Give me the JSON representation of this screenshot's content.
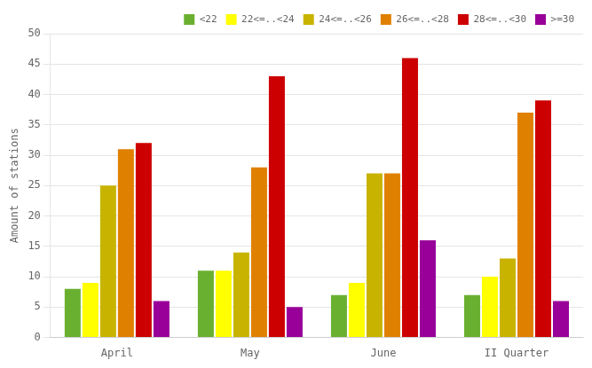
{
  "chart_data": {
    "type": "bar",
    "categories": [
      "April",
      "May",
      "June",
      "II Quarter"
    ],
    "series": [
      {
        "name": "<22",
        "color": "#6ab030",
        "values": [
          8,
          11,
          7,
          7
        ]
      },
      {
        "name": "22<=..<24",
        "color": "#ffff00",
        "values": [
          9,
          11,
          9,
          10
        ]
      },
      {
        "name": "24<=..<26",
        "color": "#c8b400",
        "values": [
          25,
          14,
          27,
          13
        ]
      },
      {
        "name": "26<=..<28",
        "color": "#e08000",
        "values": [
          31,
          28,
          27,
          37
        ]
      },
      {
        "name": "28<=..<30",
        "color": "#cc0000",
        "values": [
          32,
          43,
          46,
          39
        ]
      },
      {
        "name": ">=30",
        "color": "#990099",
        "values": [
          6,
          5,
          16,
          6
        ]
      }
    ],
    "ylabel": "Amount of stations",
    "ylim": [
      0,
      50
    ],
    "yticks": [
      0,
      5,
      10,
      15,
      20,
      25,
      30,
      35,
      40,
      45,
      50
    ],
    "grid": true,
    "legend": "upper right"
  }
}
